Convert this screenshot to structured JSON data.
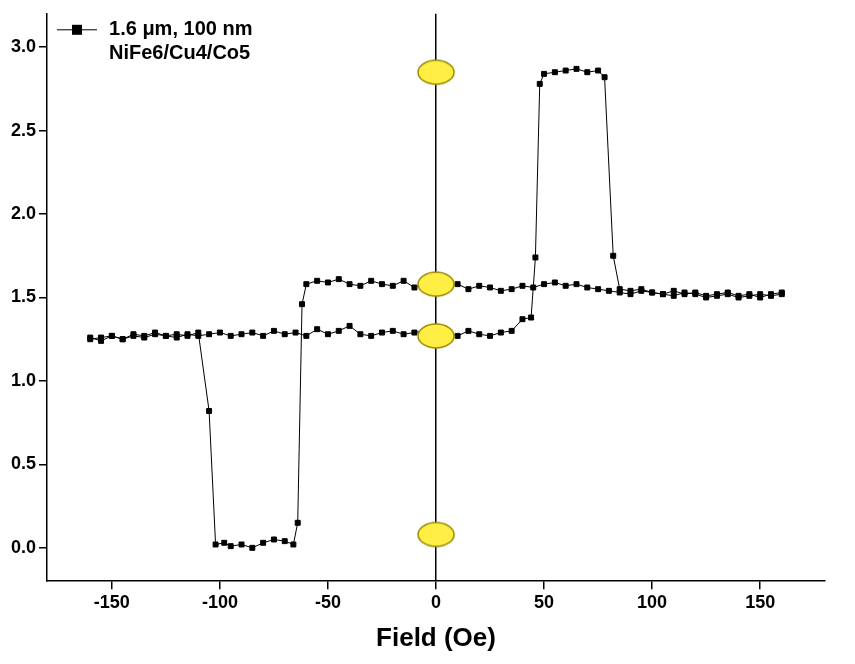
{
  "chart_data": {
    "type": "line",
    "x_label": "Field (Oe)",
    "x": [
      -160,
      -155,
      -150,
      -145,
      -140,
      -135,
      -130,
      -125,
      -120,
      -115,
      -110,
      -105,
      -102,
      -98,
      -95,
      -90,
      -85,
      -80,
      -75,
      -70,
      -66,
      -64,
      -62,
      -60,
      -55,
      -50,
      -45,
      -40,
      -35,
      -30,
      -25,
      -20,
      -15,
      -10,
      -5,
      0,
      5,
      10,
      15,
      20,
      25,
      30,
      35,
      40,
      45,
      50,
      55,
      60,
      65,
      70,
      75,
      80,
      85,
      90,
      95,
      100,
      105,
      110,
      115,
      120,
      125,
      130,
      135,
      140,
      145,
      150,
      155,
      160,
      160,
      155,
      150,
      145,
      140,
      135,
      130,
      125,
      120,
      115,
      110,
      105,
      100,
      95,
      90,
      85,
      82,
      78,
      75,
      70,
      65,
      60,
      55,
      50,
      48,
      46,
      44,
      40,
      35,
      30,
      25,
      20,
      15,
      10,
      5,
      0,
      -5,
      -10,
      -15,
      -20,
      -25,
      -30,
      -35,
      -40,
      -45,
      -50,
      -55,
      -60,
      -65,
      -70,
      -75,
      -80,
      -85,
      -90,
      -95,
      -100,
      -105,
      -110,
      -115,
      -120,
      -125,
      -130,
      -135,
      -140,
      -145,
      -150,
      -155,
      -160
    ],
    "series": [
      {
        "name": "1.6 μm, 100 nm NiFe6/Cu4/Co5",
        "color": "#000000",
        "marker": "square",
        "values": [
          1.26,
          1.24,
          1.27,
          1.25,
          1.28,
          1.27,
          1.29,
          1.27,
          1.28,
          1.27,
          1.29,
          0.82,
          0.02,
          0.03,
          0.01,
          0.02,
          0.0,
          0.03,
          0.05,
          0.04,
          0.02,
          0.15,
          1.46,
          1.58,
          1.6,
          1.59,
          1.61,
          1.58,
          1.57,
          1.6,
          1.58,
          1.57,
          1.6,
          1.56,
          1.58,
          1.59,
          1.56,
          1.58,
          1.55,
          1.57,
          1.56,
          1.54,
          1.55,
          1.57,
          1.56,
          1.58,
          1.59,
          1.57,
          1.58,
          1.56,
          1.55,
          1.54,
          1.53,
          1.52,
          1.54,
          1.53,
          1.52,
          1.51,
          1.53,
          1.52,
          1.5,
          1.51,
          1.52,
          1.5,
          1.51,
          1.52,
          1.51,
          1.52,
          1.53,
          1.52,
          1.5,
          1.52,
          1.51,
          1.53,
          1.52,
          1.51,
          1.53,
          1.52,
          1.54,
          1.52,
          1.53,
          1.55,
          1.54,
          1.55,
          1.75,
          2.82,
          2.86,
          2.85,
          2.87,
          2.86,
          2.85,
          2.84,
          2.78,
          1.74,
          1.38,
          1.37,
          1.3,
          1.29,
          1.27,
          1.28,
          1.3,
          1.27,
          1.29,
          1.28,
          1.3,
          1.29,
          1.28,
          1.3,
          1.29,
          1.27,
          1.28,
          1.33,
          1.3,
          1.28,
          1.31,
          1.27,
          1.29,
          1.28,
          1.3,
          1.27,
          1.29,
          1.28,
          1.27,
          1.29,
          1.28,
          1.27,
          1.28,
          1.26,
          1.27,
          1.28,
          1.26,
          1.27,
          1.25,
          1.27,
          1.26,
          1.25
        ]
      }
    ],
    "highlights": {
      "x": [
        0,
        0,
        0,
        0
      ],
      "values": [
        2.85,
        1.58,
        1.27,
        0.08
      ],
      "color": "#ffee44"
    },
    "xlim": [
      -180,
      180
    ],
    "xticks": [
      -150,
      -100,
      -50,
      0,
      50,
      100,
      150
    ],
    "ylim": [
      -0.2,
      3.2
    ],
    "yticks": [
      {
        "value": 0,
        "label": "0.0"
      },
      {
        "value": 0.5,
        "label": "0.5"
      },
      {
        "value": 1,
        "label": "1.0"
      },
      {
        "value": 1.5,
        "label": "1.5"
      },
      {
        "value": 2,
        "label": "2.0"
      },
      {
        "value": 2.5,
        "label": "2.5"
      },
      {
        "value": 3,
        "label": "3.0"
      }
    ],
    "grid": false,
    "legend": "upper left"
  }
}
